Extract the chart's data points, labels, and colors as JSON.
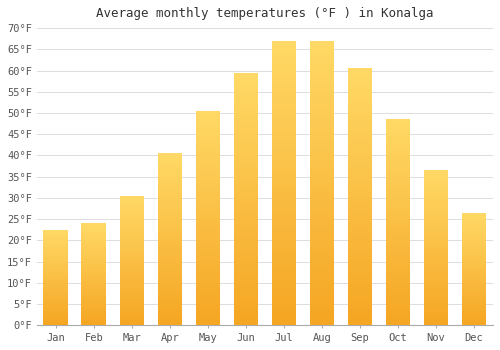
{
  "title": "Average monthly temperatures (°F ) in Konalga",
  "months": [
    "Jan",
    "Feb",
    "Mar",
    "Apr",
    "May",
    "Jun",
    "Jul",
    "Aug",
    "Sep",
    "Oct",
    "Nov",
    "Dec"
  ],
  "values": [
    22.5,
    24.0,
    30.5,
    40.5,
    50.5,
    59.5,
    67.0,
    67.0,
    60.5,
    48.5,
    36.5,
    26.5
  ],
  "bar_color_bottom": "#F5A623",
  "bar_color_top": "#FFD966",
  "background_color": "#FFFFFF",
  "grid_color": "#DDDDDD",
  "text_color": "#555555",
  "ylim": [
    0,
    70
  ],
  "yticks": [
    0,
    5,
    10,
    15,
    20,
    25,
    30,
    35,
    40,
    45,
    50,
    55,
    60,
    65,
    70
  ],
  "title_fontsize": 9,
  "tick_fontsize": 7.5,
  "font_family": "monospace"
}
